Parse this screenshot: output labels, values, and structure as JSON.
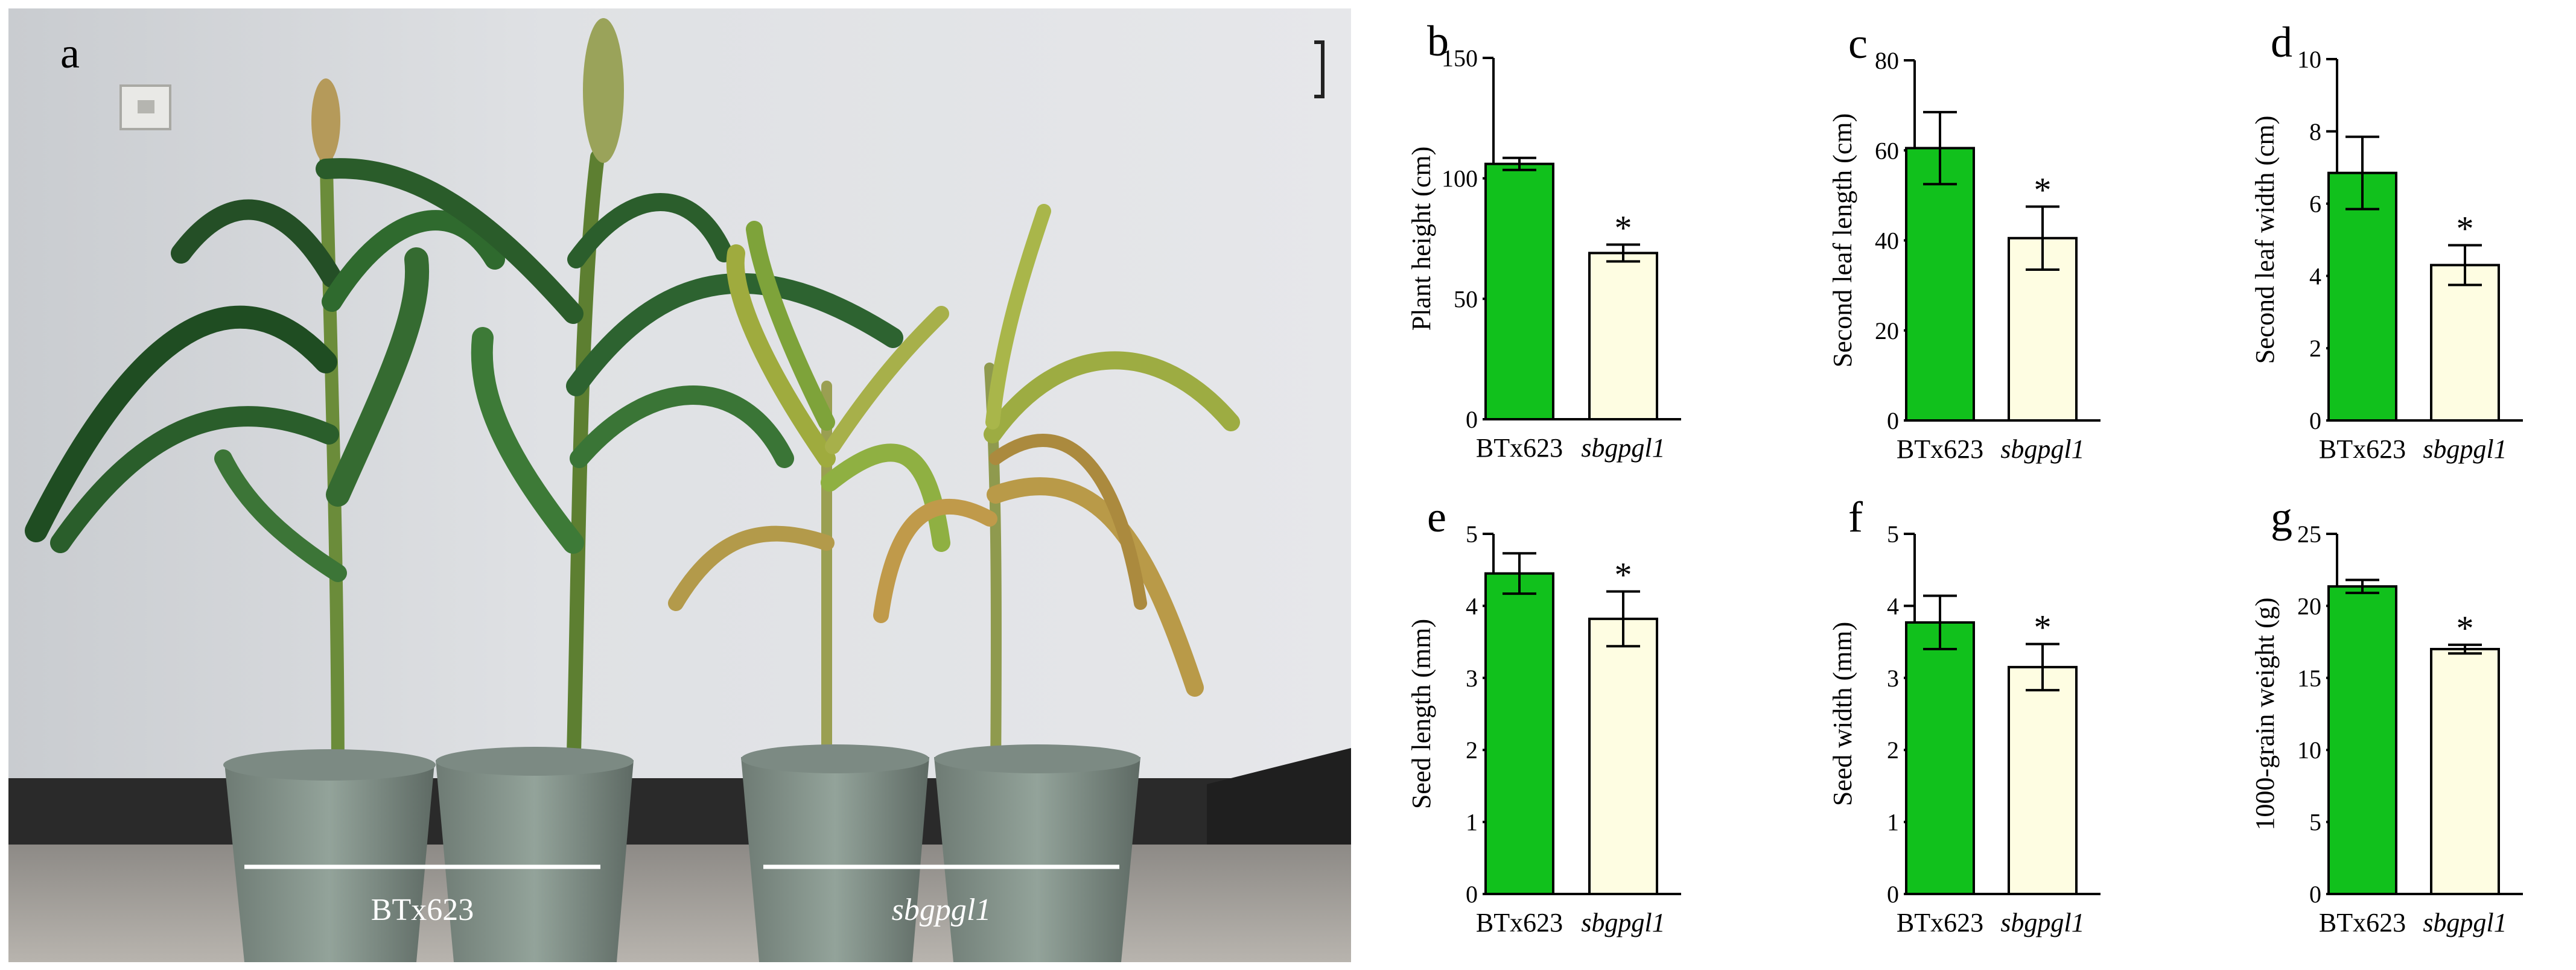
{
  "photo": {
    "panel_letter": "a",
    "groups": [
      {
        "label": "BTx623",
        "italic": false
      },
      {
        "label": "sbgpgl1",
        "italic": true
      }
    ]
  },
  "colors": {
    "btx623_bar": "#11c11c",
    "mutant_bar": "#fefde2",
    "bar_stroke": "#000000"
  },
  "chart_data": [
    {
      "panel": "b",
      "type": "bar",
      "categories": [
        "BTx623",
        "sbgpgl1"
      ],
      "values": [
        106,
        69
      ],
      "errors": [
        2.5,
        3.5
      ],
      "significance": [
        "",
        "*"
      ],
      "ylabel": "Plant height (cm)",
      "ylim": [
        0,
        150
      ],
      "yticks": [
        0,
        50,
        100,
        150
      ]
    },
    {
      "panel": "c",
      "type": "bar",
      "categories": [
        "BTx623",
        "sbgpgl1"
      ],
      "values": [
        60.5,
        40.5
      ],
      "errors": [
        8,
        7
      ],
      "significance": [
        "",
        "*"
      ],
      "ylabel": "Second leaf length (cm)",
      "ylim": [
        0,
        80
      ],
      "yticks": [
        0,
        20,
        40,
        60,
        80
      ]
    },
    {
      "panel": "d",
      "type": "bar",
      "categories": [
        "BTx623",
        "sbgpgl1"
      ],
      "values": [
        6.85,
        4.3
      ],
      "errors": [
        1.0,
        0.55
      ],
      "significance": [
        "",
        "*"
      ],
      "ylabel": "Second leaf width (cm)",
      "ylim": [
        0,
        10
      ],
      "yticks": [
        0,
        2,
        4,
        6,
        8,
        10
      ]
    },
    {
      "panel": "e",
      "type": "bar",
      "categories": [
        "BTx623",
        "sbgpgl1"
      ],
      "values": [
        4.45,
        3.82
      ],
      "errors": [
        0.28,
        0.38
      ],
      "significance": [
        "",
        "*"
      ],
      "ylabel": "Seed length (mm)",
      "ylim": [
        0,
        5
      ],
      "yticks": [
        0,
        1,
        2,
        3,
        4,
        5
      ]
    },
    {
      "panel": "f",
      "type": "bar",
      "categories": [
        "BTx623",
        "sbgpgl1"
      ],
      "values": [
        3.77,
        3.15
      ],
      "errors": [
        0.37,
        0.32
      ],
      "significance": [
        "",
        "*"
      ],
      "ylabel": "Seed width (mm)",
      "ylim": [
        0,
        5
      ],
      "yticks": [
        0,
        1,
        2,
        3,
        4,
        5
      ]
    },
    {
      "panel": "g",
      "type": "bar",
      "categories": [
        "BTx623",
        "sbgpgl1"
      ],
      "values": [
        21.35,
        17.0
      ],
      "errors": [
        0.45,
        0.3
      ],
      "significance": [
        "",
        "*"
      ],
      "ylabel": "1000-grain weight (g)",
      "ylim": [
        0,
        25
      ],
      "yticks": [
        0,
        5,
        10,
        15,
        20,
        25
      ]
    }
  ]
}
